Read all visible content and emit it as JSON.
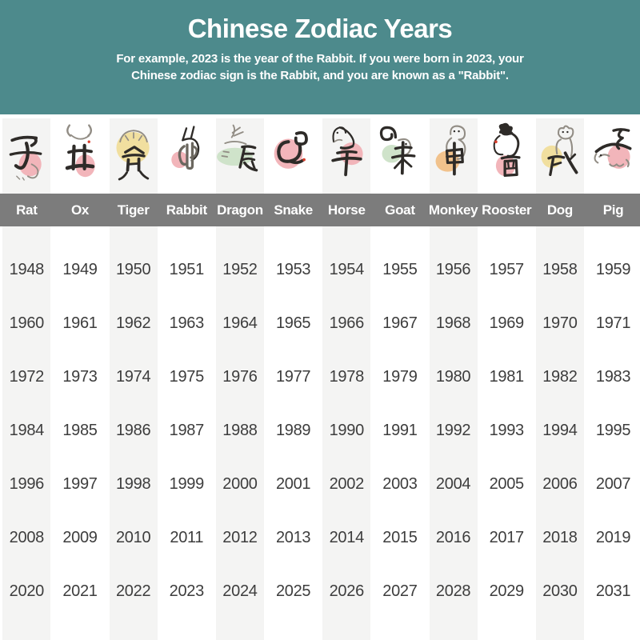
{
  "header": {
    "title": "Chinese Zodiac Years",
    "subtitle_line1": "For example, 2023 is the year of the Rabbit. If you were born in 2023, your",
    "subtitle_line2": "Chinese zodiac sign is the Rabbit, and you are known as a \"Rabbit\"."
  },
  "palette": {
    "teal": "#4D8A8C",
    "bar_gray": "#7C7C7C",
    "stripe": "#F4F4F3",
    "year_text": "#3D3D3D",
    "ink": "#2E2B28",
    "sketch": "#928D85",
    "inkgray": "#6B675F",
    "red": "#D9402E",
    "pink": "#F2B5BA",
    "yellow": "#F1DF9F",
    "green": "#CFE3CA",
    "orange": "#F1C28C"
  },
  "columns": [
    {
      "name": "Rat",
      "zodiac_char": "子",
      "icon": "rat-calligraphy-icon",
      "blob_color": "pink"
    },
    {
      "name": "Ox",
      "zodiac_char": "丑",
      "icon": "ox-calligraphy-icon",
      "blob_color": "pink"
    },
    {
      "name": "Tiger",
      "zodiac_char": "寅",
      "icon": "tiger-calligraphy-icon",
      "blob_color": "yellow"
    },
    {
      "name": "Rabbit",
      "zodiac_char": "卯",
      "icon": "rabbit-calligraphy-icon",
      "blob_color": "pink"
    },
    {
      "name": "Dragon",
      "zodiac_char": "辰",
      "icon": "dragon-calligraphy-icon",
      "blob_color": "green"
    },
    {
      "name": "Snake",
      "zodiac_char": "巳",
      "icon": "snake-calligraphy-icon",
      "blob_color": "pink"
    },
    {
      "name": "Horse",
      "zodiac_char": "午",
      "icon": "horse-calligraphy-icon",
      "blob_color": "pink"
    },
    {
      "name": "Goat",
      "zodiac_char": "未",
      "icon": "goat-calligraphy-icon",
      "blob_color": "green"
    },
    {
      "name": "Monkey",
      "zodiac_char": "申",
      "icon": "monkey-calligraphy-icon",
      "blob_color": "orange"
    },
    {
      "name": "Rooster",
      "zodiac_char": "酉",
      "icon": "rooster-calligraphy-icon",
      "blob_color": "pink"
    },
    {
      "name": "Dog",
      "zodiac_char": "戌",
      "icon": "dog-calligraphy-icon",
      "blob_color": "yellow"
    },
    {
      "name": "Pig",
      "zodiac_char": "亥",
      "icon": "pig-calligraphy-icon",
      "blob_color": "pink"
    }
  ],
  "chart_data": {
    "type": "table",
    "title": "Chinese Zodiac Years",
    "categories": [
      "Rat",
      "Ox",
      "Tiger",
      "Rabbit",
      "Dragon",
      "Snake",
      "Horse",
      "Goat",
      "Monkey",
      "Rooster",
      "Dog",
      "Pig"
    ],
    "rows": [
      [
        1948,
        1949,
        1950,
        1951,
        1952,
        1953,
        1954,
        1955,
        1956,
        1957,
        1958,
        1959
      ],
      [
        1960,
        1961,
        1962,
        1963,
        1964,
        1965,
        1966,
        1967,
        1968,
        1969,
        1970,
        1971
      ],
      [
        1972,
        1973,
        1974,
        1975,
        1976,
        1977,
        1978,
        1979,
        1980,
        1981,
        1982,
        1983
      ],
      [
        1984,
        1985,
        1986,
        1987,
        1988,
        1989,
        1990,
        1991,
        1992,
        1993,
        1994,
        1995
      ],
      [
        1996,
        1997,
        1998,
        1999,
        2000,
        2001,
        2002,
        2003,
        2004,
        2005,
        2006,
        2007
      ],
      [
        2008,
        2009,
        2010,
        2011,
        2012,
        2013,
        2014,
        2015,
        2016,
        2017,
        2018,
        2019
      ],
      [
        2020,
        2021,
        2022,
        2023,
        2024,
        2025,
        2026,
        2027,
        2028,
        2029,
        2030,
        2031
      ]
    ]
  }
}
